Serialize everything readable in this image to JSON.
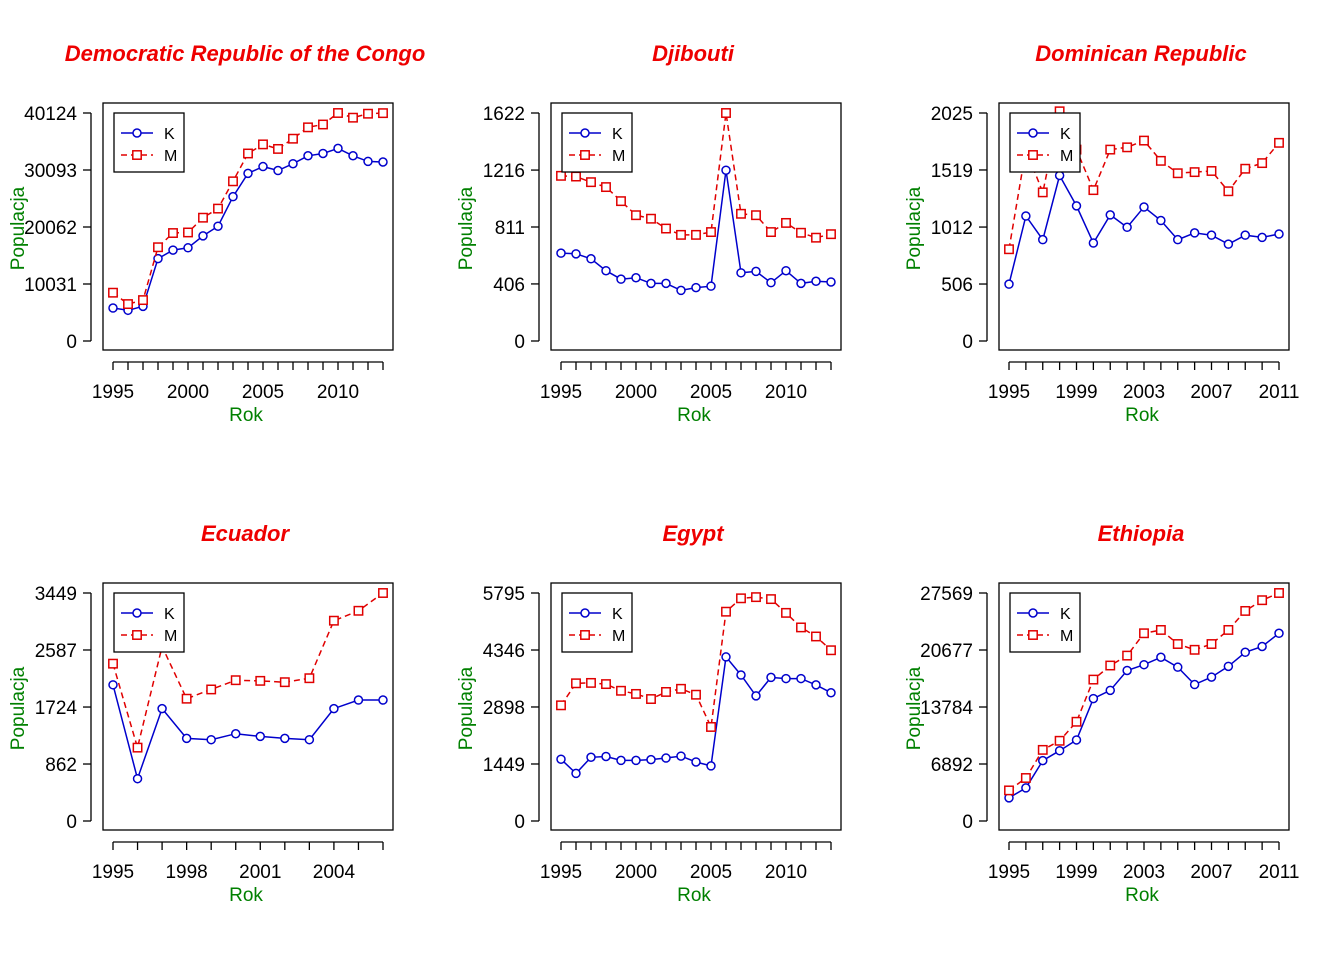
{
  "figure": {
    "colors": {
      "K": "#0000cc",
      "M": "#e00000",
      "title": "#ee0000",
      "label": "#008000",
      "axis": "#000000"
    }
  },
  "chart_data": [
    {
      "type": "line",
      "title": "Democratic Republic of the Congo",
      "xlabel": "Rok",
      "ylabel": "Populacja",
      "x": [
        1995,
        1996,
        1997,
        1998,
        1999,
        2000,
        2001,
        2002,
        2003,
        2004,
        2005,
        2006,
        2007,
        2008,
        2009,
        2010,
        2011,
        2012,
        2013
      ],
      "xticks": [
        1995,
        2000,
        2005,
        2010
      ],
      "yticks": [
        0,
        10031,
        20062,
        30093,
        40124
      ],
      "ylim": [
        0,
        40124
      ],
      "legend": "top-left",
      "series": [
        {
          "name": "K",
          "values": [
            5800,
            5400,
            6100,
            14500,
            16000,
            16400,
            18500,
            20200,
            25400,
            29500,
            30700,
            30000,
            31200,
            32600,
            33000,
            33900,
            32600,
            31600,
            31500
          ]
        },
        {
          "name": "M",
          "values": [
            8500,
            6500,
            7200,
            16500,
            19000,
            19100,
            21700,
            23300,
            28100,
            33000,
            34600,
            33800,
            35600,
            37600,
            38100,
            40124,
            39300,
            40000,
            40100
          ]
        }
      ]
    },
    {
      "type": "line",
      "title": "Djibouti",
      "xlabel": "Rok",
      "ylabel": "Populacja",
      "x": [
        1995,
        1996,
        1997,
        1998,
        1999,
        2000,
        2001,
        2002,
        2003,
        2004,
        2005,
        2006,
        2007,
        2008,
        2009,
        2010,
        2011,
        2012,
        2013
      ],
      "xticks": [
        1995,
        2000,
        2005,
        2010
      ],
      "yticks": [
        0,
        406,
        811,
        1216,
        1622
      ],
      "ylim": [
        0,
        1622
      ],
      "legend": "top-left",
      "series": [
        {
          "name": "K",
          "values": [
            625,
            620,
            585,
            500,
            440,
            450,
            410,
            410,
            360,
            380,
            390,
            1215,
            485,
            495,
            415,
            500,
            410,
            425,
            420
          ]
        },
        {
          "name": "M",
          "values": [
            1175,
            1170,
            1130,
            1095,
            995,
            895,
            870,
            800,
            755,
            755,
            775,
            1622,
            905,
            895,
            775,
            840,
            770,
            735,
            760
          ]
        }
      ]
    },
    {
      "type": "line",
      "title": "Dominican Republic",
      "xlabel": "Rok",
      "ylabel": "Populacja",
      "x": [
        1995,
        1996,
        1997,
        1998,
        1999,
        2000,
        2001,
        2002,
        2003,
        2004,
        2005,
        2006,
        2007,
        2008,
        2009,
        2010,
        2011
      ],
      "xticks": [
        1995,
        1999,
        2003,
        2007,
        2011
      ],
      "yticks": [
        0,
        506,
        1012,
        1519,
        2025
      ],
      "ylim": [
        0,
        2025
      ],
      "legend": "top-left",
      "series": [
        {
          "name": "K",
          "values": [
            505,
            1110,
            900,
            1470,
            1200,
            870,
            1120,
            1010,
            1190,
            1070,
            900,
            960,
            940,
            860,
            940,
            920,
            950
          ]
        },
        {
          "name": "M",
          "values": [
            815,
            1700,
            1320,
            2040,
            1700,
            1340,
            1700,
            1720,
            1780,
            1600,
            1490,
            1500,
            1510,
            1330,
            1530,
            1580,
            1760
          ]
        }
      ]
    },
    {
      "type": "line",
      "title": "Ecuador",
      "xlabel": "Rok",
      "ylabel": "Populacja",
      "x": [
        1995,
        1996,
        1997,
        1998,
        1999,
        2000,
        2001,
        2002,
        2003,
        2004,
        2005,
        2006
      ],
      "xticks": [
        1995,
        1998,
        2001,
        2004
      ],
      "yticks": [
        0,
        862,
        1724,
        2587,
        3449
      ],
      "ylim": [
        0,
        3449
      ],
      "legend": "top-left",
      "series": [
        {
          "name": "K",
          "values": [
            2060,
            640,
            1700,
            1250,
            1230,
            1320,
            1280,
            1250,
            1230,
            1700,
            1830,
            1830
          ]
        },
        {
          "name": "M",
          "values": [
            2380,
            1110,
            2640,
            1850,
            1990,
            2130,
            2120,
            2100,
            2160,
            3030,
            3180,
            3449
          ]
        }
      ]
    },
    {
      "type": "line",
      "title": "Egypt",
      "xlabel": "Rok",
      "ylabel": "Populacja",
      "x": [
        1995,
        1996,
        1997,
        1998,
        1999,
        2000,
        2001,
        2002,
        2003,
        2004,
        2005,
        2006,
        2007,
        2008,
        2009,
        2010,
        2011,
        2012,
        2013
      ],
      "xticks": [
        1995,
        2000,
        2005,
        2010
      ],
      "yticks": [
        0,
        1449,
        2898,
        4346,
        5795
      ],
      "ylim": [
        0,
        5795
      ],
      "legend": "top-left",
      "series": [
        {
          "name": "K",
          "values": [
            1570,
            1210,
            1620,
            1640,
            1540,
            1540,
            1560,
            1600,
            1650,
            1500,
            1400,
            4170,
            3710,
            3180,
            3650,
            3620,
            3620,
            3460,
            3260
          ]
        },
        {
          "name": "M",
          "values": [
            2940,
            3500,
            3510,
            3480,
            3310,
            3230,
            3100,
            3280,
            3360,
            3210,
            2390,
            5320,
            5660,
            5690,
            5640,
            5290,
            4920,
            4690,
            4340
          ]
        }
      ]
    },
    {
      "type": "line",
      "title": "Ethiopia",
      "xlabel": "Rok",
      "ylabel": "Populacja",
      "x": [
        1995,
        1996,
        1997,
        1998,
        1999,
        2000,
        2001,
        2002,
        2003,
        2004,
        2005,
        2006,
        2007,
        2008,
        2009,
        2010,
        2011
      ],
      "xticks": [
        1995,
        1999,
        2003,
        2007,
        2011
      ],
      "yticks": [
        0,
        6892,
        13784,
        20677,
        27569
      ],
      "ylim": [
        0,
        27569
      ],
      "legend": "top-left",
      "series": [
        {
          "name": "K",
          "values": [
            2800,
            4000,
            7300,
            8500,
            9800,
            14800,
            15800,
            18200,
            18900,
            19800,
            18600,
            16500,
            17400,
            18700,
            20400,
            21100,
            22700
          ]
        },
        {
          "name": "M",
          "values": [
            3700,
            5200,
            8600,
            9700,
            12000,
            17100,
            18800,
            20000,
            22700,
            23100,
            21400,
            20700,
            21400,
            23100,
            25400,
            26700,
            27569
          ]
        }
      ]
    }
  ]
}
